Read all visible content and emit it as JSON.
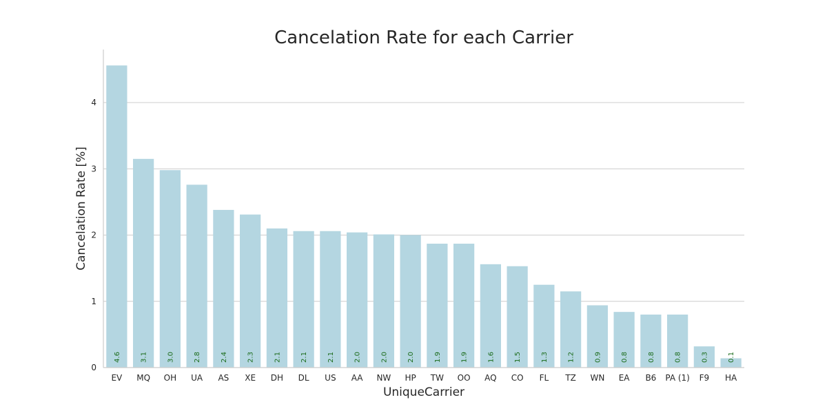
{
  "chart_data": {
    "type": "bar",
    "title": "Cancelation Rate for each Carrier",
    "xlabel": "UniqueCarrier",
    "ylabel": "Cancelation Rate [%]",
    "ylim": [
      0,
      4.8
    ],
    "yticks": [
      "0",
      "1",
      "2",
      "3",
      "4"
    ],
    "grid": "y",
    "bar_color": "#b4d6e1",
    "label_color": "#1a6b1a",
    "categories": [
      "EV",
      "MQ",
      "OH",
      "UA",
      "AS",
      "XE",
      "DH",
      "DL",
      "US",
      "AA",
      "NW",
      "HP",
      "TW",
      "OO",
      "AQ",
      "CO",
      "FL",
      "TZ",
      "WN",
      "EA",
      "B6",
      "PA (1)",
      "F9",
      "HA"
    ],
    "values": [
      4.56,
      3.15,
      2.98,
      2.76,
      2.38,
      2.31,
      2.1,
      2.06,
      2.06,
      2.04,
      2.01,
      2.0,
      1.87,
      1.87,
      1.56,
      1.53,
      1.25,
      1.15,
      0.94,
      0.84,
      0.8,
      0.8,
      0.32,
      0.14
    ],
    "value_labels": [
      "4.6",
      "3.1",
      "3.0",
      "2.8",
      "2.4",
      "2.3",
      "2.1",
      "2.1",
      "2.1",
      "2.0",
      "2.0",
      "2.0",
      "1.9",
      "1.9",
      "1.6",
      "1.5",
      "1.3",
      "1.2",
      "0.9",
      "0.8",
      "0.8",
      "0.8",
      "0.3",
      "0.1"
    ]
  }
}
